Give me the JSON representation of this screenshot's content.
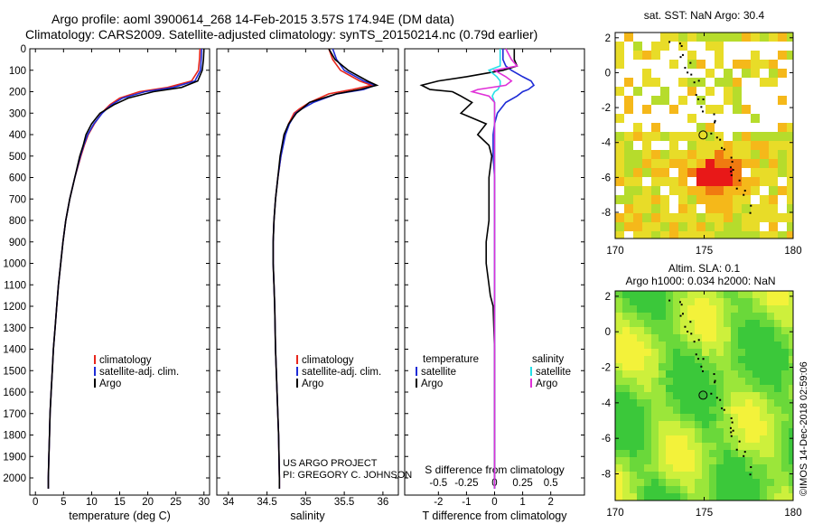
{
  "header": {
    "line1": "Argo profile: aoml 3900614_268 14-Feb-2015 3.57S 174.94E (DM data)",
    "line2": "Climatology: CARS2009. Satellite-adjusted climatology: synTS_20150214.nc (0.79d earlier)"
  },
  "credit": {
    "line1": "US ARGO PROJECT",
    "line2": "PI: GREGORY C. JOHNSON"
  },
  "imos_stamp": "©IMOS 14-Dec-2018 02:59:06",
  "colors": {
    "climatology": "#e8261c",
    "satellite": "#1d2bd6",
    "argo": "#000000",
    "satellite_s": "#25e0e8",
    "argo_s": "#e030d8"
  },
  "chart_data": [
    {
      "type": "line",
      "xlabel": "temperature (deg C)",
      "ylabel": "",
      "xlim": [
        -1,
        31
      ],
      "ylim": [
        2080,
        0
      ],
      "x_ticks": [
        "0",
        "5",
        "10",
        "15",
        "20",
        "25",
        "30"
      ],
      "y_ticks": [
        "0",
        "100",
        "200",
        "300",
        "400",
        "500",
        "600",
        "700",
        "800",
        "900",
        "1000",
        "1100",
        "1200",
        "1300",
        "1400",
        "1500",
        "1600",
        "1700",
        "1800",
        "1900",
        "2000"
      ],
      "legend": [
        "climatology",
        "satellite-adj. clim.",
        "Argo"
      ],
      "depth": [
        0,
        50,
        100,
        150,
        180,
        200,
        230,
        260,
        280,
        300,
        350,
        400,
        450,
        500,
        600,
        700,
        800,
        900,
        1000,
        1100,
        1200,
        1300,
        1400,
        1500,
        1600,
        1700,
        1800,
        1900,
        2000,
        2050
      ],
      "series": [
        {
          "name": "climatology",
          "values": [
            29.3,
            29.2,
            29.0,
            27.8,
            23.5,
            18.5,
            15.0,
            13.3,
            12.5,
            11.8,
            10.5,
            9.4,
            8.7,
            8.1,
            7.0,
            6.1,
            5.4,
            4.9,
            4.5,
            4.1,
            3.8,
            3.5,
            3.2,
            3.0,
            2.8,
            2.6,
            2.5,
            2.4,
            2.3,
            2.3
          ]
        },
        {
          "name": "satellite-adj. clim.",
          "values": [
            29.6,
            29.5,
            29.4,
            28.4,
            24.5,
            19.5,
            15.5,
            13.6,
            12.7,
            11.9,
            10.4,
            9.3,
            8.6,
            8.0,
            7.0,
            6.1,
            5.4,
            4.9,
            4.5,
            4.1,
            3.8,
            3.5,
            3.2,
            3.0,
            2.8,
            2.6,
            2.5,
            2.4,
            2.3,
            2.3
          ]
        },
        {
          "name": "Argo",
          "values": [
            30.0,
            29.9,
            29.7,
            28.9,
            26.0,
            21.0,
            16.5,
            14.0,
            12.8,
            11.5,
            10.0,
            9.0,
            8.5,
            7.9,
            7.0,
            6.1,
            5.4,
            4.9,
            4.5,
            4.1,
            3.8,
            3.5,
            3.2,
            3.0,
            2.8,
            2.6,
            2.5,
            2.4,
            2.3,
            2.3
          ]
        }
      ]
    },
    {
      "type": "line",
      "xlabel": "salinity",
      "xlim": [
        33.85,
        36.2
      ],
      "ylim": [
        2080,
        0
      ],
      "x_ticks": [
        "34",
        "34.5",
        "35",
        "35.5",
        "36"
      ],
      "legend": [
        "climatology",
        "satellite-adj. clim.",
        "Argo"
      ],
      "depth": [
        0,
        50,
        100,
        150,
        170,
        190,
        210,
        250,
        280,
        300,
        350,
        400,
        500,
        600,
        700,
        800,
        900,
        1000,
        1100,
        1200,
        1400,
        1600,
        1800,
        2000,
        2050
      ],
      "series": [
        {
          "name": "climatology",
          "values": [
            35.3,
            35.35,
            35.45,
            35.7,
            35.85,
            35.6,
            35.3,
            35.05,
            34.92,
            34.85,
            34.78,
            34.73,
            34.68,
            34.64,
            34.61,
            34.59,
            34.58,
            34.58,
            34.59,
            34.6,
            34.61,
            34.63,
            34.65,
            34.66,
            34.66
          ]
        },
        {
          "name": "satellite-adj. clim.",
          "values": [
            35.35,
            35.4,
            35.5,
            35.75,
            35.9,
            35.75,
            35.4,
            35.1,
            34.95,
            34.87,
            34.79,
            34.74,
            34.68,
            34.64,
            34.61,
            34.59,
            34.58,
            34.58,
            34.59,
            34.6,
            34.61,
            34.63,
            34.65,
            34.66,
            34.66
          ]
        },
        {
          "name": "Argo",
          "values": [
            35.3,
            35.38,
            35.55,
            35.8,
            35.92,
            35.7,
            35.4,
            35.05,
            34.95,
            34.88,
            34.78,
            34.72,
            34.67,
            34.64,
            34.61,
            34.59,
            34.58,
            34.58,
            34.59,
            34.6,
            34.61,
            34.63,
            34.65,
            34.66,
            34.66
          ]
        }
      ]
    },
    {
      "type": "line",
      "xlabel": "T difference from climatology",
      "xlabel_top": "S difference from climatology",
      "xlim_T": [
        -3.2,
        3.2
      ],
      "xlim_S": [
        -0.8,
        0.8
      ],
      "ylim": [
        2080,
        0
      ],
      "x_ticks_T": [
        "-2",
        "-1",
        "0",
        "1",
        "2"
      ],
      "x_ticks_S": [
        "-0.5",
        "-0.25",
        "0",
        "0.25",
        "0.5"
      ],
      "legend_left_title": "temperature",
      "legend_right_title": "salinity",
      "legend_left": [
        "satellite",
        "Argo"
      ],
      "legend_right": [
        "satellite",
        "Argo"
      ],
      "depth": [
        0,
        50,
        80,
        100,
        130,
        150,
        170,
        190,
        200,
        220,
        250,
        300,
        350,
        400,
        450,
        500,
        600,
        700,
        800,
        900,
        1000,
        1100,
        1150,
        1200,
        1400,
        1600,
        1800,
        2000,
        2050
      ],
      "series": [
        {
          "name": "satellite",
          "group": "temperature",
          "values": [
            0.3,
            0.3,
            0.4,
            0.6,
            1.0,
            1.3,
            1.4,
            1.2,
            1.0,
            0.8,
            0.4,
            0.1,
            0.0,
            -0.05,
            -0.05,
            -0.05,
            0.0,
            0.0,
            0.0,
            0.0,
            0.0,
            0.0,
            0.0,
            0.0,
            0.0,
            0.0,
            0.0,
            0.0,
            0.0
          ]
        },
        {
          "name": "Argo",
          "group": "temperature",
          "values": [
            0.7,
            0.7,
            0.8,
            0.3,
            -1.0,
            -2.0,
            -2.6,
            -2.3,
            -1.5,
            -1.2,
            -0.8,
            -1.2,
            -0.3,
            -0.6,
            -0.2,
            -0.1,
            -0.2,
            -0.2,
            -0.2,
            -0.3,
            -0.3,
            -0.2,
            -0.15,
            -0.05,
            0.0,
            0.0,
            0.0,
            0.0,
            0.0
          ]
        },
        {
          "name": "satellite",
          "group": "salinity",
          "values": [
            0.05,
            0.05,
            0.05,
            -0.05,
            0.02,
            0.05,
            0.05,
            0.03,
            0.0,
            -0.02,
            0.0,
            0.0,
            0.0,
            0.0,
            0.0,
            0.0,
            0.0,
            0.0,
            0.0,
            0.0,
            0.0,
            0.0,
            0.0,
            0.0,
            0.0,
            0.0,
            0.0,
            0.0,
            0.0
          ]
        },
        {
          "name": "Argo",
          "group": "salinity",
          "values": [
            0.1,
            0.15,
            0.2,
            0.0,
            0.1,
            0.15,
            0.1,
            -0.15,
            -0.2,
            -0.05,
            0.0,
            0.0,
            0.0,
            0.0,
            0.0,
            0.0,
            0.0,
            0.0,
            0.0,
            0.0,
            0.0,
            0.0,
            0.0,
            0.0,
            0.0,
            0.0,
            0.0,
            0.0,
            0.0
          ]
        }
      ]
    },
    {
      "type": "heatmap",
      "title": "sat. SST: NaN Argo: 30.4",
      "xlim": [
        170,
        180
      ],
      "ylim": [
        -9.5,
        2.3
      ],
      "x_ticks": [
        "170",
        "175",
        "180"
      ],
      "y_ticks": [
        "2",
        "0",
        "-2",
        "-4",
        "-6",
        "-8"
      ],
      "marker": {
        "lon": 174.94,
        "lat": -3.57
      }
    },
    {
      "type": "heatmap",
      "title": "Altim. SLA: 0.1",
      "subtitle": "Argo h1000: 0.034 h2000: NaN",
      "xlim": [
        170,
        180
      ],
      "ylim": [
        -9.5,
        2.3
      ],
      "x_ticks": [
        "170",
        "175",
        "180"
      ],
      "y_ticks": [
        "2",
        "0",
        "-2",
        "-4",
        "-6",
        "-8"
      ],
      "marker": {
        "lon": 174.94,
        "lat": -3.57
      }
    }
  ]
}
